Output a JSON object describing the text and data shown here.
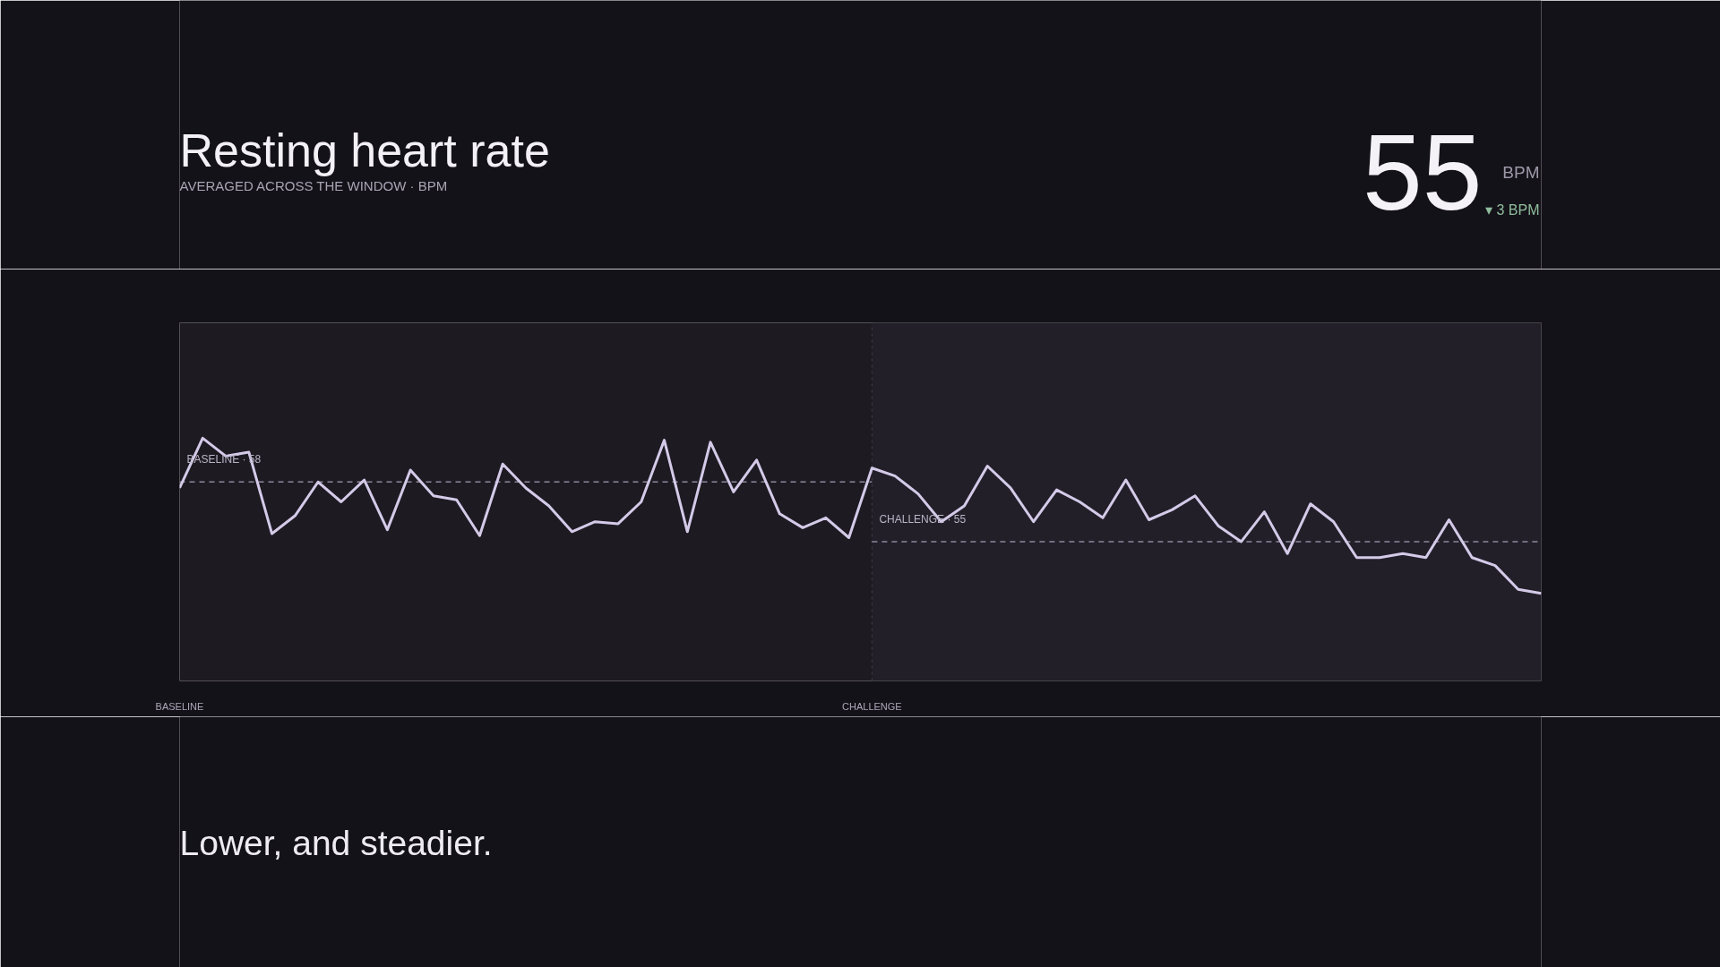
{
  "chart_data": {
    "type": "line",
    "title": "Resting heart rate",
    "subtitle": "AVERAGED ACROSS THE WINDOW · BPM",
    "categories": [
      "BASELINE",
      null,
      null,
      null,
      null,
      null,
      null,
      null,
      null,
      null,
      null,
      null,
      null,
      null,
      null,
      null,
      null,
      null,
      null,
      null,
      null,
      null,
      null,
      null,
      null,
      null,
      null,
      null,
      null,
      null,
      "CHALLENGE",
      null,
      null,
      null,
      null,
      null,
      null,
      null,
      null,
      null,
      null,
      null,
      null,
      null,
      null,
      null,
      null,
      null,
      null,
      null,
      null,
      null,
      null,
      null,
      null,
      null,
      null,
      null,
      null,
      null
    ],
    "series": [
      {
        "color": "#d4cae8",
        "values": [
          57.7,
          60.2,
          59.3,
          59.5,
          55.4,
          56.3,
          58.0,
          57.0,
          58.1,
          55.6,
          58.6,
          57.3,
          57.1,
          55.3,
          58.9,
          57.7,
          56.8,
          55.5,
          56.0,
          55.9,
          57.0,
          60.1,
          55.5,
          60.0,
          57.5,
          59.1,
          56.4,
          55.7,
          56.2,
          55.2,
          58.7,
          58.3,
          57.4,
          56.0,
          56.8,
          58.8,
          57.7,
          56.0,
          57.6,
          57.0,
          56.2,
          58.1,
          56.1,
          56.6,
          57.3,
          55.8,
          55.0,
          56.5,
          54.4,
          56.9,
          56.0,
          54.2,
          54.2,
          54.4,
          54.2,
          56.1,
          54.2,
          53.8,
          52.6,
          52.4
        ]
      }
    ],
    "ylim": [
      48,
      66
    ],
    "tick_labels": "x",
    "grid": "x",
    "line_style": "solid",
    "ref_lines": [
      {
        "axis": "y",
        "value": 58,
        "label": "BASELINE · 58",
        "color": "#8d879a",
        "line_style": "dashed"
      },
      {
        "axis": "y",
        "value": 55,
        "label": "CHALLENGE · 55",
        "color": "#8d879a",
        "line_style": "dashed"
      }
    ],
    "annotations": [
      "55",
      "BPM",
      "▾ 3 BPM",
      "Lower, and steadier."
    ]
  }
}
